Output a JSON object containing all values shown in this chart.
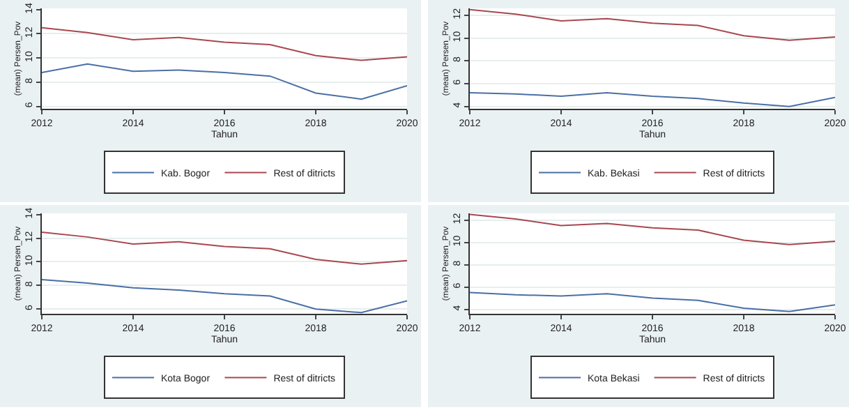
{
  "chart_data": [
    {
      "type": "line",
      "xlabel": "Tahun",
      "ylabel": "(mean) Persen_Pov",
      "x": [
        2012,
        2013,
        2014,
        2015,
        2016,
        2017,
        2018,
        2019,
        2020
      ],
      "xlim": [
        2012,
        2020
      ],
      "xticks": [
        2012,
        2014,
        2016,
        2018,
        2020
      ],
      "ylim": [
        5.8,
        14.1
      ],
      "yticks": [
        6,
        8,
        10,
        12,
        14
      ],
      "grid": "y",
      "legend": "bottom",
      "marker": "none",
      "series": [
        {
          "name": "Kab. Bogor",
          "color": "#4a6fa5",
          "values": [
            8.8,
            9.5,
            8.9,
            9.0,
            8.8,
            8.5,
            7.1,
            6.6,
            7.7
          ]
        },
        {
          "name": "Rest of ditricts",
          "color": "#a8474f",
          "values": [
            12.5,
            12.1,
            11.5,
            11.7,
            11.3,
            11.1,
            10.2,
            9.8,
            10.1
          ]
        }
      ]
    },
    {
      "type": "line",
      "xlabel": "Tahun",
      "ylabel": "(mean) Persen_Pov",
      "x": [
        2012,
        2013,
        2014,
        2015,
        2016,
        2017,
        2018,
        2019,
        2020
      ],
      "xlim": [
        2012,
        2020
      ],
      "xticks": [
        2012,
        2014,
        2016,
        2018,
        2020
      ],
      "ylim": [
        3.8,
        12.6
      ],
      "yticks": [
        4,
        6,
        8,
        10,
        12
      ],
      "grid": "y",
      "legend": "bottom",
      "marker": "none",
      "series": [
        {
          "name": "Kab. Bekasi",
          "color": "#4a6fa5",
          "values": [
            5.2,
            5.1,
            4.9,
            5.2,
            4.9,
            4.7,
            4.3,
            4.0,
            4.8
          ]
        },
        {
          "name": "Rest of ditricts",
          "color": "#a8474f",
          "values": [
            12.5,
            12.1,
            11.5,
            11.7,
            11.3,
            11.1,
            10.2,
            9.8,
            10.1
          ]
        }
      ]
    },
    {
      "type": "line",
      "xlabel": "Tahun",
      "ylabel": "(mean) Persen_Pov",
      "x": [
        2012,
        2013,
        2014,
        2015,
        2016,
        2017,
        2018,
        2019,
        2020
      ],
      "xlim": [
        2012,
        2020
      ],
      "xticks": [
        2012,
        2014,
        2016,
        2018,
        2020
      ],
      "ylim": [
        5.6,
        14.1
      ],
      "yticks": [
        6,
        8,
        10,
        12,
        14
      ],
      "grid": "y",
      "legend": "bottom",
      "marker": "none",
      "series": [
        {
          "name": "Kota Bogor",
          "color": "#4a6fa5",
          "values": [
            8.5,
            8.2,
            7.8,
            7.6,
            7.3,
            7.1,
            6.0,
            5.7,
            6.7
          ]
        },
        {
          "name": "Rest of ditricts",
          "color": "#a8474f",
          "values": [
            12.5,
            12.1,
            11.5,
            11.7,
            11.3,
            11.1,
            10.2,
            9.8,
            10.1
          ]
        }
      ]
    },
    {
      "type": "line",
      "xlabel": "Tahun",
      "ylabel": "(mean) Persen_Pov",
      "x": [
        2012,
        2013,
        2014,
        2015,
        2016,
        2017,
        2018,
        2019,
        2020
      ],
      "xlim": [
        2012,
        2020
      ],
      "xticks": [
        2012,
        2014,
        2016,
        2018,
        2020
      ],
      "ylim": [
        3.6,
        12.6
      ],
      "yticks": [
        4,
        6,
        8,
        10,
        12
      ],
      "grid": "y",
      "legend": "bottom",
      "marker": "none",
      "series": [
        {
          "name": "Kota Bekasi",
          "color": "#4a6fa5",
          "values": [
            5.5,
            5.3,
            5.2,
            5.4,
            5.0,
            4.8,
            4.1,
            3.8,
            4.4
          ]
        },
        {
          "name": "Rest of ditricts",
          "color": "#a8474f",
          "values": [
            12.5,
            12.1,
            11.5,
            11.7,
            11.3,
            11.1,
            10.2,
            9.8,
            10.1
          ]
        }
      ]
    }
  ]
}
